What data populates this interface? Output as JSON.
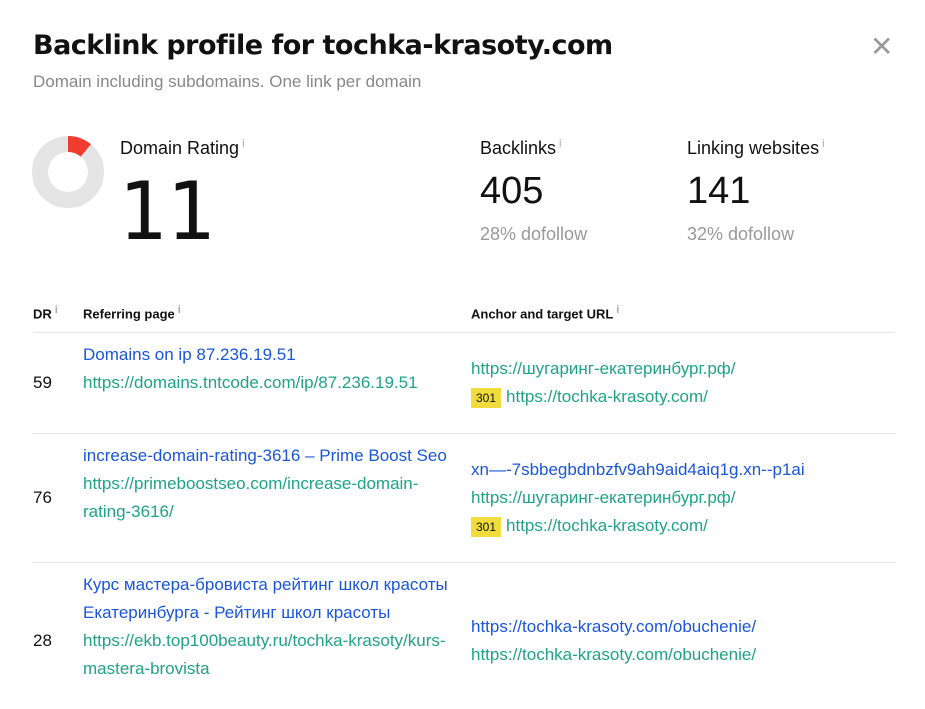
{
  "header": {
    "title": "Backlink profile for tochka-krasoty.com",
    "subtitle": "Domain including subdomains. One link per domain",
    "close": "✕"
  },
  "stats": {
    "dr": {
      "label": "Domain Rating",
      "value": "11",
      "fraction": 0.11,
      "color": "#f03c2e"
    },
    "backlinks": {
      "label": "Backlinks",
      "value": "405",
      "sub": "28% dofollow"
    },
    "linking": {
      "label": "Linking websites",
      "value": "141",
      "sub": "32% dofollow"
    },
    "info": "i"
  },
  "table": {
    "headers": [
      "DR",
      "Referring page",
      "Anchor and target URL"
    ],
    "rows": [
      {
        "dr": "59",
        "title": "Domains on ip 87.236.19.51",
        "url": "https://domains.tntcode.com/ip/87.236.19.51",
        "anchor": "",
        "links": [
          "https://шугаринг-екатеринбург.рф/"
        ],
        "redirect": "301",
        "target": "https://tochka-krasoty.com/"
      },
      {
        "dr": "76",
        "title": "increase-domain-rating-3616 – Prime Boost Seo",
        "url": "https://primeboostseo.com/increase-domain-rating-3616/",
        "anchor": "xn—-7sbbegbdnbzfv9ah9aid4aiq1g.xn--p1ai",
        "links": [
          "https://шугаринг-екатеринбург.рф/"
        ],
        "redirect": "301",
        "target": "https://tochka-krasoty.com/"
      },
      {
        "dr": "28",
        "title": "Курс мастера-бровиста рейтинг школ красоты Екатеринбурга - Рейтинг школ красоты",
        "url": "https://ekb.top100beauty.ru/tochka-krasoty/kurs-mastera-brovista",
        "anchor": "https://tochka-krasoty.com/obuchenie/",
        "links": [
          "https://tochka-krasoty.com/obuchenie/"
        ],
        "redirect": "",
        "target": ""
      }
    ]
  }
}
